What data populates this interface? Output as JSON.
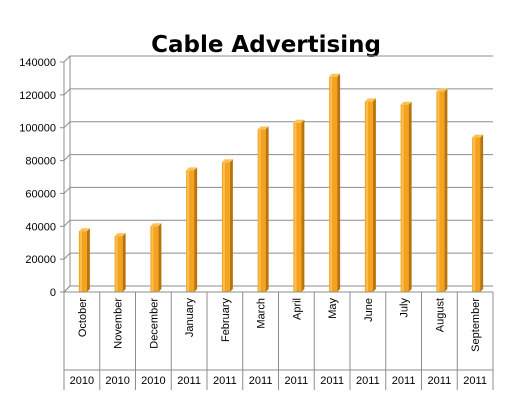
{
  "chart_data": {
    "type": "bar",
    "title": "Cable Advertising",
    "categories": [
      "October",
      "November",
      "December",
      "January",
      "February",
      "March",
      "April",
      "May",
      "June",
      "July",
      "August",
      "September"
    ],
    "years": [
      "2010",
      "2010",
      "2010",
      "2011",
      "2011",
      "2011",
      "2011",
      "2011",
      "2011",
      "2011",
      "2011",
      "2011"
    ],
    "values": [
      37000,
      34000,
      40000,
      74000,
      79000,
      99000,
      103000,
      131000,
      116000,
      114000,
      122000,
      94000
    ],
    "ylim": [
      0,
      140000
    ],
    "yticks": [
      "0",
      "20000",
      "40000",
      "60000",
      "80000",
      "100000",
      "120000",
      "140000"
    ],
    "xlabel": "",
    "ylabel": "",
    "grid": true,
    "legend": "none",
    "bar_color": "#F5A31E",
    "bar_dark_color": "#B8730A"
  }
}
